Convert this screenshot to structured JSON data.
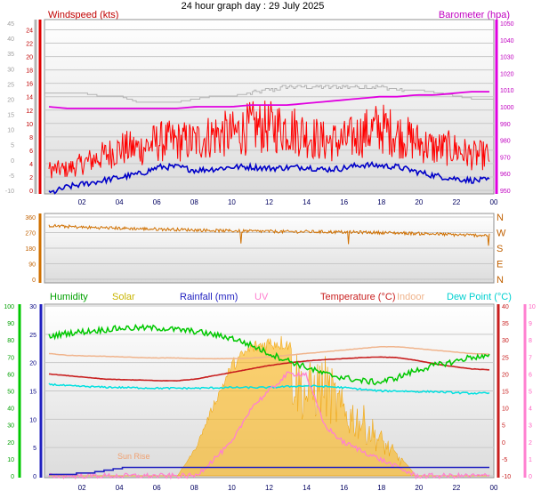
{
  "title": "24 hour graph day : 29 July 2025",
  "colors": {
    "wind": "#e00000",
    "gust": "#ff0000",
    "avgwind": "#0000c8",
    "baro": "#e000e0",
    "temp": "#c81e1e",
    "indoor": "#f0b48c",
    "dew": "#00e0e0",
    "humidity": "#00c800",
    "solar": "#ffb000",
    "rain": "#2020c0",
    "uv": "#ff80d0",
    "winddir": "#d07000",
    "grey": "#b4b4b4"
  },
  "x_ticks": [
    "02",
    "04",
    "06",
    "08",
    "10",
    "12",
    "14",
    "16",
    "18",
    "20",
    "22",
    "00"
  ],
  "wind_panel": {
    "label_left": "Windspeed (kts)",
    "label_right": "Barometer (hpa)",
    "grey_axis_ticks": [
      "-10",
      "-5",
      "0",
      "5",
      "10",
      "15",
      "20",
      "25",
      "30",
      "35",
      "40",
      "45"
    ],
    "speed_ticks": [
      "0",
      "2",
      "4",
      "6",
      "8",
      "10",
      "12",
      "14",
      "16",
      "18",
      "20",
      "22",
      "24"
    ],
    "baro_ticks": [
      "950",
      "960",
      "970",
      "980",
      "990",
      "1000",
      "1010",
      "1020",
      "1030",
      "1040",
      "1050"
    ]
  },
  "dir_panel": {
    "deg_ticks": [
      "0",
      "90",
      "180",
      "270",
      "360"
    ],
    "compass_ticks": [
      "N",
      "E",
      "S",
      "W",
      "N"
    ]
  },
  "bottom_panel": {
    "labels": {
      "humidity": "Humidity",
      "solar": "Solar",
      "rain": "Rainfall (mm)",
      "uv": "UV",
      "temp": "Temperature (°C)",
      "indoor": "Indoor",
      "dew": "Dew Point (°C)"
    },
    "sunrise": "Sun Rise",
    "humidity_ticks": [
      "0",
      "10",
      "20",
      "30",
      "40",
      "50",
      "60",
      "70",
      "80",
      "90",
      "100"
    ],
    "rain_ticks": [
      "0",
      "5",
      "10",
      "15",
      "20",
      "25",
      "30"
    ],
    "temp_ticks": [
      "-10",
      "-5",
      "0",
      "5",
      "10",
      "15",
      "20",
      "25",
      "30",
      "35",
      "40"
    ],
    "uv_ticks": [
      "0",
      "1",
      "2",
      "3",
      "4",
      "5",
      "6",
      "7",
      "8",
      "9",
      "10"
    ]
  },
  "chart_data": [
    {
      "type": "line",
      "title": "24 hour graph day : 29 July 2025",
      "x_hours": [
        0,
        1,
        2,
        3,
        4,
        5,
        6,
        7,
        8,
        9,
        10,
        11,
        12,
        13,
        14,
        15,
        16,
        17,
        18,
        19,
        20,
        21,
        22,
        23,
        24
      ],
      "series": [
        {
          "name": "Windspeed (kts)",
          "axis": "left",
          "values": [
            3,
            3,
            4,
            5,
            6,
            6,
            7,
            7,
            7,
            8,
            8,
            9,
            9,
            9,
            8,
            7,
            7,
            8,
            9,
            8,
            7,
            6,
            6,
            5,
            5
          ]
        },
        {
          "name": "Barometer (hpa)",
          "axis": "right",
          "values": [
            1000,
            999,
            999,
            999,
            999,
            999,
            999,
            999,
            1000,
            1000,
            1000,
            1001,
            1001,
            1001,
            1002,
            1003,
            1004,
            1005,
            1006,
            1006,
            1007,
            1007,
            1008,
            1009,
            1009
          ]
        }
      ],
      "series_unnamed": [
        {
          "axis": "left",
          "values": [
            -0.5,
            0.5,
            1,
            1.5,
            2,
            2.5,
            3.5,
            3.5,
            3,
            3.2,
            3.5,
            3.5,
            3.3,
            3.4,
            3.5,
            3.1,
            3.3,
            3.8,
            3.7,
            3.5,
            2.8,
            2.2,
            1.8,
            1.5,
            1.5
          ]
        },
        {
          "axis": "grey",
          "values": [
            22,
            22,
            22,
            21,
            21,
            19,
            19,
            19,
            20,
            21,
            21,
            22,
            23,
            24,
            24,
            24,
            24,
            24,
            24,
            23,
            23,
            22,
            21,
            20,
            20
          ]
        }
      ],
      "ylim_left": [
        0,
        25
      ],
      "ylim_right": [
        950,
        1050
      ],
      "ylim_grey": [
        -10,
        45
      ]
    },
    {
      "type": "line",
      "x_hours": [
        0,
        1,
        2,
        3,
        4,
        5,
        6,
        7,
        8,
        9,
        10,
        11,
        12,
        13,
        14,
        15,
        16,
        17,
        18,
        19,
        20,
        21,
        22,
        23,
        24
      ],
      "series_unnamed": [
        {
          "values": [
            310,
            305,
            300,
            298,
            295,
            292,
            290,
            288,
            285,
            282,
            280,
            278,
            277,
            275,
            275,
            274,
            273,
            272,
            270,
            268,
            265,
            262,
            258,
            255,
            255
          ]
        }
      ],
      "ylim": [
        0,
        360
      ]
    },
    {
      "type": "line",
      "x_hours": [
        0,
        1,
        2,
        3,
        4,
        5,
        6,
        7,
        8,
        9,
        10,
        11,
        12,
        13,
        14,
        15,
        16,
        17,
        18,
        19,
        20,
        21,
        22,
        23,
        24
      ],
      "series": [
        {
          "name": "Humidity",
          "axis": "humidity",
          "values": [
            82,
            84,
            85,
            86,
            87,
            87,
            87,
            86,
            85,
            83,
            81,
            77,
            72,
            68,
            64,
            60,
            58,
            56,
            55,
            58,
            62,
            65,
            67,
            70,
            70
          ]
        },
        {
          "name": "Temperature (°C)",
          "axis": "temp",
          "values": [
            20,
            19.5,
            19,
            18.5,
            18.3,
            18.2,
            18,
            18,
            18.5,
            19.5,
            20.5,
            21.5,
            22.5,
            23.2,
            23.8,
            24.2,
            24.5,
            24.8,
            25,
            24.8,
            24,
            23,
            22.2,
            21.5,
            21.2
          ]
        },
        {
          "name": "Dew Point (°C)",
          "axis": "temp",
          "values": [
            17,
            16.5,
            16.3,
            16.1,
            16,
            15.9,
            15.8,
            15.8,
            15.8,
            15.9,
            16,
            16,
            16,
            16.3,
            16.5,
            16.3,
            16,
            15.5,
            15,
            15,
            14.8,
            14.8,
            14.5,
            14.3,
            14.3
          ]
        },
        {
          "name": "Indoor",
          "axis": "temp",
          "values": [
            26,
            25.5,
            25.3,
            25.2,
            25,
            24.8,
            24.7,
            24.7,
            24.5,
            24.5,
            24.5,
            24.7,
            25,
            25.5,
            26,
            26.5,
            27,
            27.5,
            28,
            28,
            27.5,
            27,
            26.5,
            26,
            25.8
          ]
        },
        {
          "name": "Solar",
          "axis": "rain",
          "values": [
            0,
            0,
            0,
            0,
            0,
            0,
            0,
            0,
            5,
            13,
            20,
            23,
            24,
            24,
            18,
            20,
            14,
            12,
            8,
            4,
            0,
            0,
            0,
            0,
            0
          ]
        },
        {
          "name": "UV",
          "axis": "uv",
          "values": [
            0,
            0,
            0,
            0,
            0,
            0,
            0,
            0,
            0,
            1,
            2,
            4,
            5,
            6,
            6,
            3,
            2,
            1.5,
            1,
            0.5,
            0,
            0,
            0,
            0,
            0
          ]
        },
        {
          "name": "Rainfall (mm)",
          "axis": "rain",
          "values": [
            0.3,
            0.3,
            0.5,
            1,
            1.6,
            1.6,
            1.6,
            1.6,
            1.6,
            1.6,
            1.6,
            1.6,
            1.6,
            1.6,
            1.6,
            1.6,
            1.6,
            1.6,
            1.6,
            1.6,
            1.6,
            1.6,
            1.6,
            1.6,
            1.6
          ]
        }
      ],
      "ylim_humidity": [
        0,
        100
      ],
      "ylim_rain": [
        0,
        30
      ],
      "ylim_temp": [
        -10,
        40
      ],
      "ylim_uv": [
        0,
        10
      ]
    }
  ]
}
